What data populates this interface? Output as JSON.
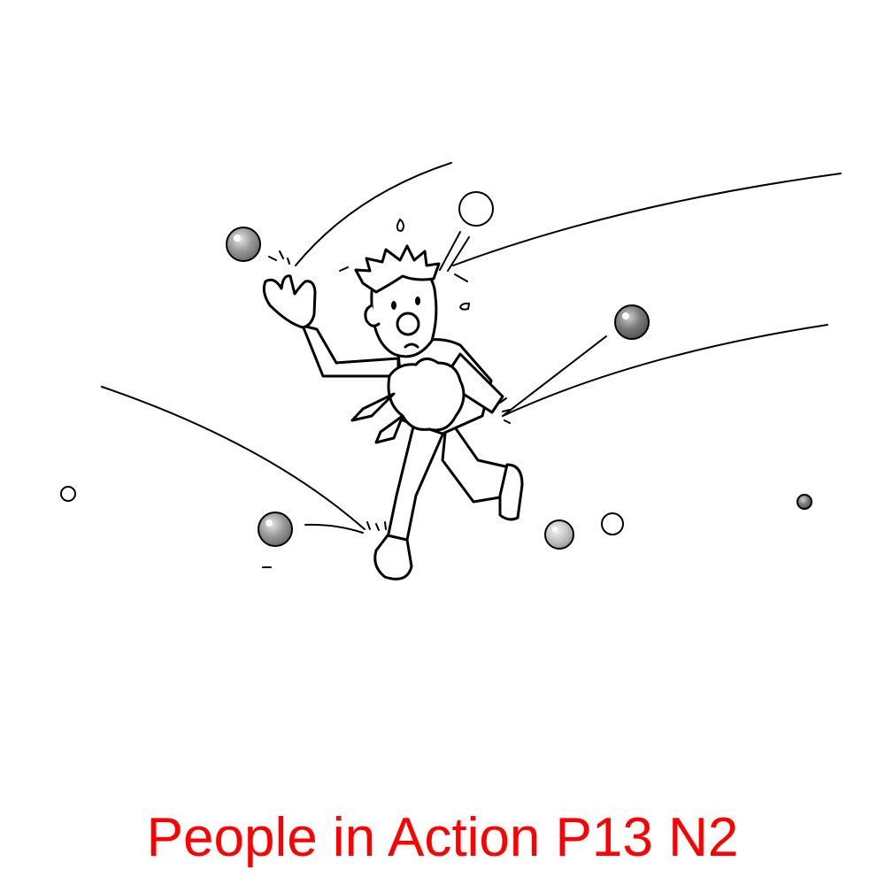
{
  "caption": {
    "text": "People in Action P13 N2",
    "color": "#ff0000"
  },
  "illustration": {
    "subject": "cartoon man running while juggling/hit by flying balls",
    "line_color": "#000000",
    "ball_colors": [
      "#9a9a9a",
      "#ffffff",
      "#777777",
      "#bdbdbd"
    ]
  }
}
